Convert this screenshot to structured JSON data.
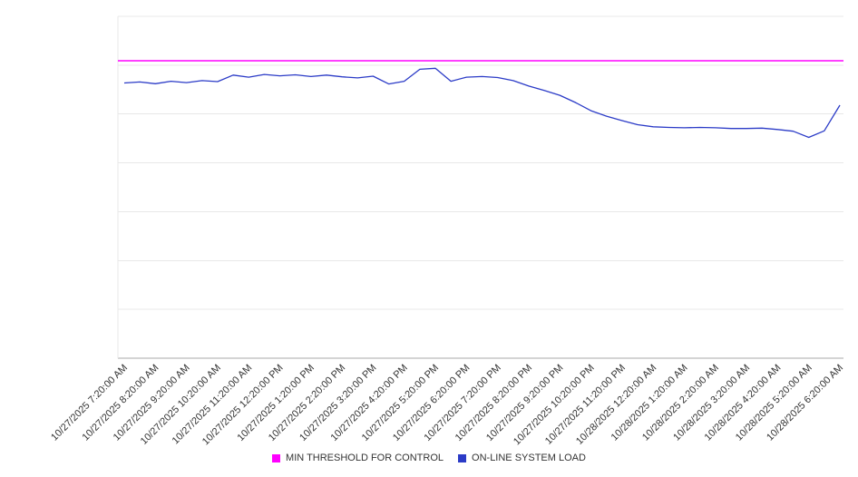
{
  "chart_data": {
    "type": "line",
    "title": "",
    "xlabel": "",
    "ylabel": "",
    "ylim": [
      0,
      100
    ],
    "grid": "horizontal",
    "legend_position": "bottom",
    "x_tick_labels": [
      "10/27/2025 7:20:00 AM",
      "10/27/2025 8:20:00 AM",
      "10/27/2025 9:20:00 AM",
      "10/27/2025 10:20:00 AM",
      "10/27/2025 11:20:00 AM",
      "10/27/2025 12:20:00 PM",
      "10/27/2025 1:20:00 PM",
      "10/27/2025 2:20:00 PM",
      "10/27/2025 3:20:00 PM",
      "10/27/2025 4:20:00 PM",
      "10/27/2025 5:20:00 PM",
      "10/27/2025 6:20:00 PM",
      "10/27/2025 7:20:00 PM",
      "10/27/2025 8:20:00 PM",
      "10/27/2025 9:20:00 PM",
      "10/27/2025 10:20:00 PM",
      "10/27/2025 11:20:00 PM",
      "10/28/2025 12:20:00 AM",
      "10/28/2025 1:20:00 AM",
      "10/28/2025 2:20:00 AM",
      "10/28/2025 3:20:00 AM",
      "10/28/2025 4:20:00 AM",
      "10/28/2025 5:20:00 AM",
      "10/28/2025 6:20:00 AM"
    ],
    "series": [
      {
        "name": "MIN THRESHOLD FOR CONTROL",
        "type": "constant",
        "color": "#ff00ff",
        "value": 87
      },
      {
        "name": "ON-LINE SYSTEM LOAD",
        "type": "line",
        "color": "#2b3bc7",
        "values": [
          80.5,
          80.8,
          80.3,
          81.0,
          80.6,
          81.2,
          80.9,
          82.8,
          82.2,
          83.0,
          82.6,
          82.9,
          82.4,
          82.8,
          82.3,
          82.0,
          82.5,
          80.2,
          81.0,
          84.5,
          84.8,
          81.0,
          82.2,
          82.4,
          82.1,
          81.2,
          79.6,
          78.3,
          76.9,
          74.8,
          72.4,
          70.8,
          69.5,
          68.3,
          67.7,
          67.5,
          67.4,
          67.5,
          67.4,
          67.2,
          67.2,
          67.3,
          66.9,
          66.4,
          64.6,
          66.5,
          74.0
        ]
      }
    ]
  }
}
